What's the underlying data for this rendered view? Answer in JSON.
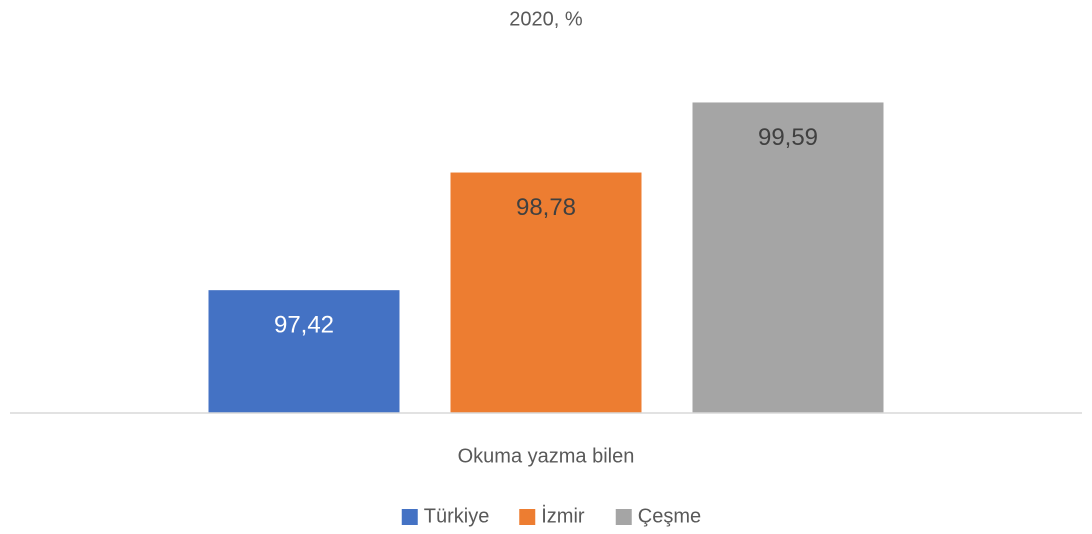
{
  "chart_data": {
    "type": "bar",
    "title": "2020, %",
    "categories": [
      "Okuma yazma bilen"
    ],
    "series": [
      {
        "name": "Türkiye",
        "color": "#4472c4",
        "label_color": "#ffffff",
        "values": [
          97.42
        ],
        "value_labels": [
          "97,42"
        ]
      },
      {
        "name": "İzmir",
        "color": "#ed7d31",
        "label_color": "#404040",
        "values": [
          98.78
        ],
        "value_labels": [
          "98,78"
        ]
      },
      {
        "name": "Çeşme",
        "color": "#a5a5a5",
        "label_color": "#404040",
        "values": [
          99.59
        ],
        "value_labels": [
          "99,59"
        ]
      }
    ],
    "ylim": [
      96,
      100
    ],
    "legend": "bottom",
    "grid": false
  }
}
